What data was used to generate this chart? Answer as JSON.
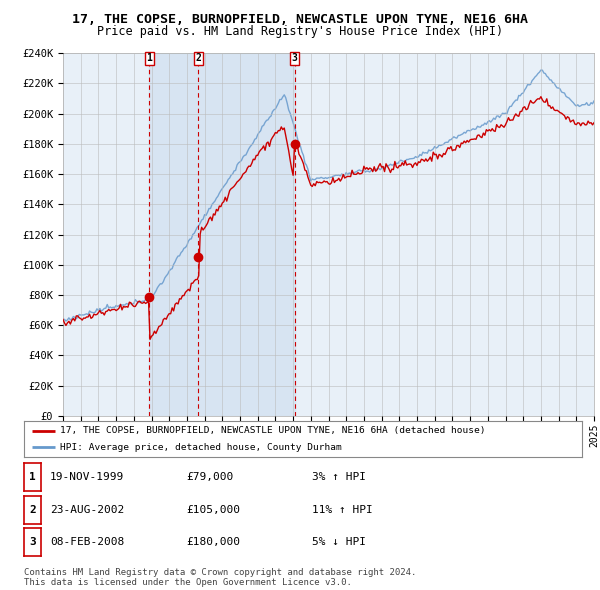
{
  "title": "17, THE COPSE, BURNOPFIELD, NEWCASTLE UPON TYNE, NE16 6HA",
  "subtitle": "Price paid vs. HM Land Registry's House Price Index (HPI)",
  "ylabel_ticks": [
    "£0",
    "£20K",
    "£40K",
    "£60K",
    "£80K",
    "£100K",
    "£120K",
    "£140K",
    "£160K",
    "£180K",
    "£200K",
    "£220K",
    "£240K"
  ],
  "ytick_vals": [
    0,
    20000,
    40000,
    60000,
    80000,
    100000,
    120000,
    140000,
    160000,
    180000,
    200000,
    220000,
    240000
  ],
  "ylim": [
    0,
    240000
  ],
  "sale_year_floats": [
    1999.88,
    2002.64,
    2008.09
  ],
  "sale_prices": [
    79000,
    105000,
    180000
  ],
  "sale_labels": [
    "1",
    "2",
    "3"
  ],
  "legend_line1": "17, THE COPSE, BURNOPFIELD, NEWCASTLE UPON TYNE, NE16 6HA (detached house)",
  "legend_line2": "HPI: Average price, detached house, County Durham",
  "table_rows": [
    [
      "1",
      "19-NOV-1999",
      "£79,000",
      "3% ↑ HPI"
    ],
    [
      "2",
      "23-AUG-2002",
      "£105,000",
      "11% ↑ HPI"
    ],
    [
      "3",
      "08-FEB-2008",
      "£180,000",
      "5% ↓ HPI"
    ]
  ],
  "footnote": "Contains HM Land Registry data © Crown copyright and database right 2024.\nThis data is licensed under the Open Government Licence v3.0.",
  "line_color_red": "#cc0000",
  "line_color_blue": "#6699cc",
  "bg_color": "#ffffff",
  "chart_bg": "#e8f0f8",
  "grid_color": "#bbbbbb",
  "shade_color": "#d0e0f0",
  "x_start_year": 1995,
  "x_end_year": 2025
}
